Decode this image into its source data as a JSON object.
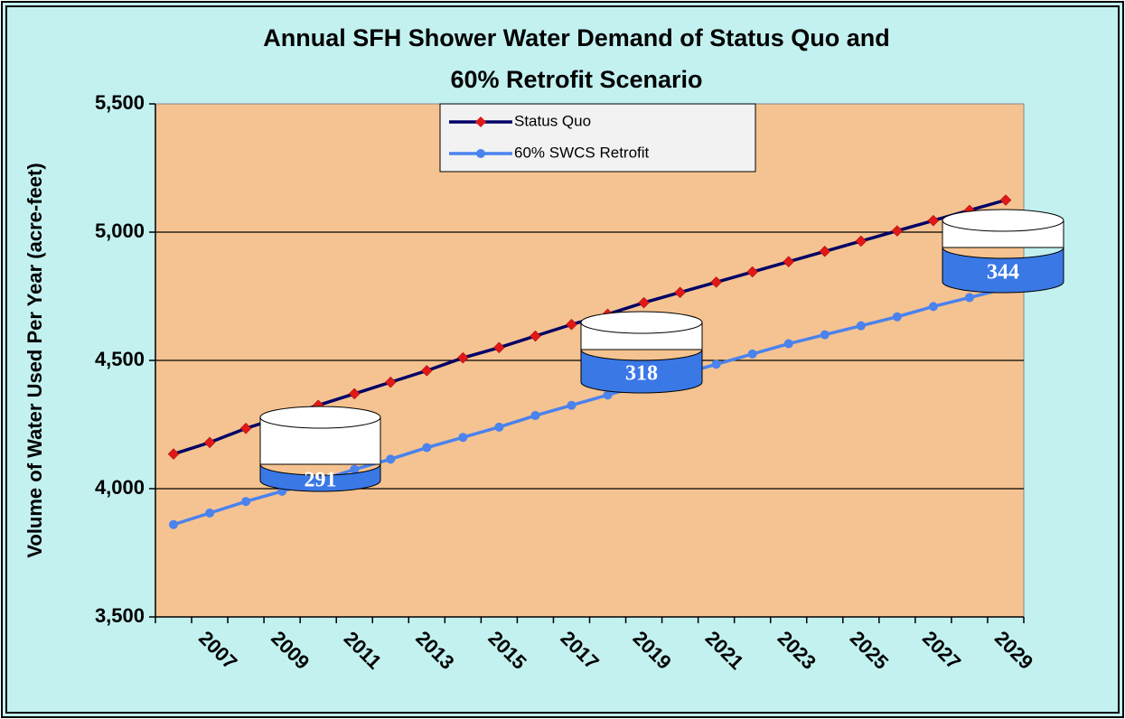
{
  "chart_data": {
    "type": "line",
    "title": "Annual SFH Shower Water Demand of Status Quo and",
    "subtitle": "60% Retrofit Scenario",
    "y_label": "Volume of Water Used Per Year (acre-feet)",
    "categories": [
      null,
      "2007",
      null,
      "2009",
      null,
      "2011",
      null,
      "2013",
      null,
      "2015",
      null,
      "2017",
      null,
      "2019",
      null,
      "2021",
      null,
      "2023",
      null,
      "2025",
      null,
      "2027",
      null,
      "2029"
    ],
    "series": [
      {
        "name": "Status Quo",
        "color": "#000066",
        "marker_color": "#e01818",
        "marker": "diamond",
        "values": [
          4135,
          4180,
          4235,
          4280,
          4325,
          4370,
          4415,
          4460,
          4510,
          4550,
          4595,
          4640,
          4680,
          4725,
          4765,
          4805,
          4845,
          4885,
          4925,
          4965,
          5005,
          5045,
          5085,
          5125
        ]
      },
      {
        "name": "60% SWCS Retrofit",
        "color": "#4a82ee",
        "marker_color": "#4a82ee",
        "marker": "circle",
        "values": [
          3860,
          3905,
          3950,
          3990,
          4030,
          4075,
          4115,
          4160,
          4200,
          4240,
          4285,
          4325,
          4365,
          4405,
          4445,
          4485,
          4525,
          4565,
          4600,
          4635,
          4670,
          4710,
          4745,
          4780
        ]
      }
    ],
    "annotations": [
      "291",
      "318",
      "344"
    ],
    "ylim": [
      3500,
      5500
    ],
    "yticks": [
      {
        "value": 3500,
        "label": "3,500"
      },
      {
        "value": 4000,
        "label": "4,000"
      },
      {
        "value": 4500,
        "label": "4,500"
      },
      {
        "value": 5000,
        "label": "5,000"
      },
      {
        "value": 5500,
        "label": "5,500"
      }
    ],
    "grid": true,
    "legend": "top-center"
  }
}
